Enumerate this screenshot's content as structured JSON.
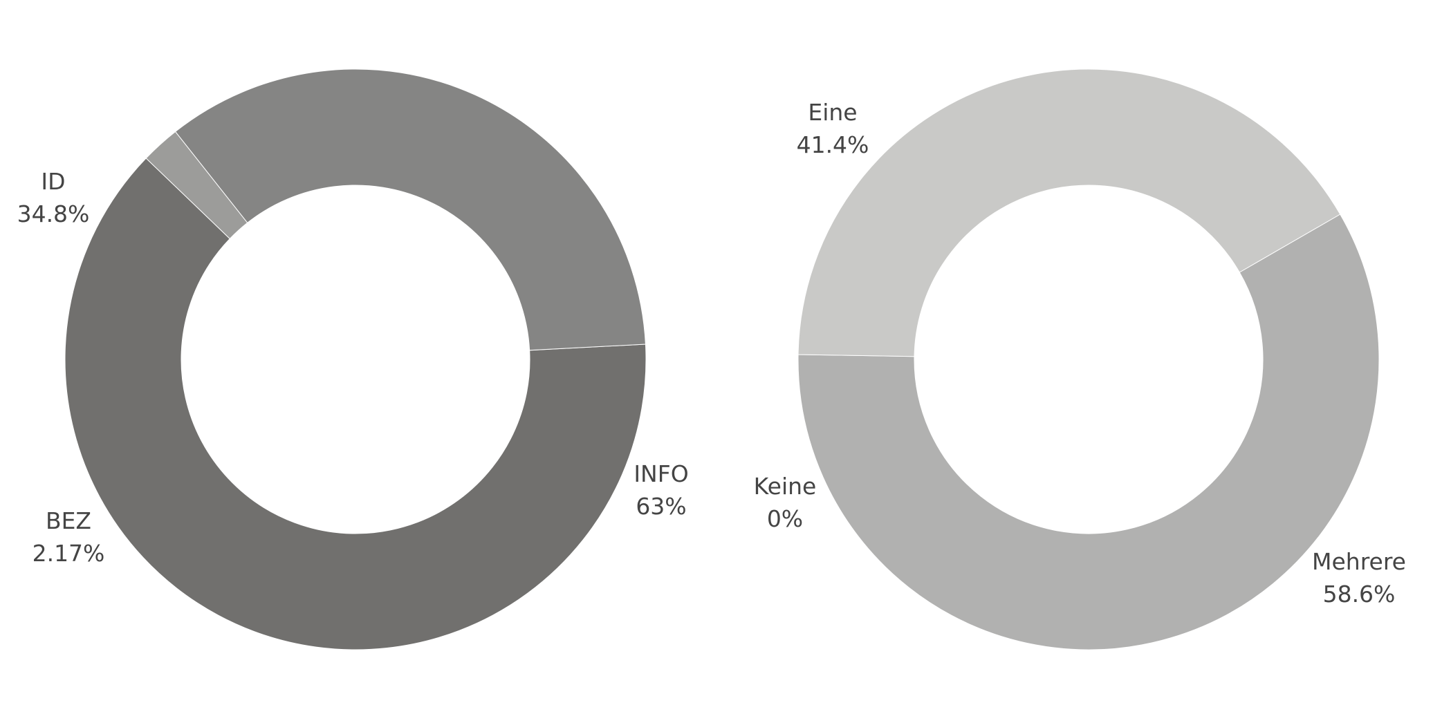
{
  "chart_data": [
    {
      "type": "pie",
      "style": "donut",
      "title": "",
      "slices": [
        {
          "label": "INFO",
          "value": 63.0,
          "display": "63%",
          "color": "#71706e"
        },
        {
          "label": "BEZ",
          "value": 2.17,
          "display": "2.17%",
          "color": "#9c9c9a"
        },
        {
          "label": "ID",
          "value": 34.8,
          "display": "34.8%",
          "color": "#858584"
        }
      ]
    },
    {
      "type": "pie",
      "style": "donut",
      "title": "",
      "slices": [
        {
          "label": "Mehrere",
          "value": 58.6,
          "display": "58.6%",
          "color": "#b1b1b0"
        },
        {
          "label": "Keine",
          "value": 0,
          "display": "0%",
          "color": "#bdbdbc"
        },
        {
          "label": "Eine",
          "value": 41.4,
          "display": "41.4%",
          "color": "#c9c9c7"
        }
      ]
    }
  ]
}
